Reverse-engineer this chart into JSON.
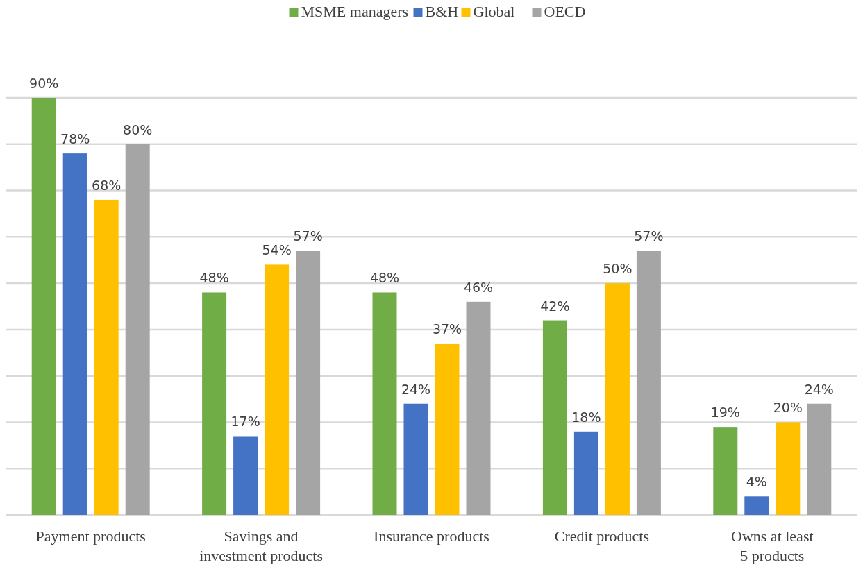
{
  "chart_data": {
    "type": "bar",
    "categories": [
      "Payment products",
      "Savings and\ninvestment products",
      "Insurance products",
      "Credit products",
      "Owns at least\n5 products"
    ],
    "series": [
      {
        "name": "MSME managers",
        "color": "#70ad47",
        "values": [
          90,
          48,
          48,
          42,
          19
        ],
        "value_labels": [
          "90%",
          "48%",
          "48%",
          "42%",
          "19%"
        ]
      },
      {
        "name": "B&H",
        "color": "#4472c4",
        "values": [
          78,
          17,
          24,
          18,
          4
        ],
        "value_labels": [
          "78%",
          "17%",
          "24%",
          "18%",
          "4%"
        ]
      },
      {
        "name": "Global",
        "color": "#ffc000",
        "values": [
          68,
          54,
          37,
          50,
          20
        ],
        "value_labels": [
          "68%",
          "54%",
          "37%",
          "50%",
          "20%"
        ]
      },
      {
        "name": "OECD",
        "color": "#a5a5a5",
        "values": [
          80,
          57,
          46,
          57,
          24
        ],
        "value_labels": [
          "80%",
          "57%",
          "46%",
          "57%",
          "24%"
        ]
      }
    ],
    "tick_labels": "x",
    "grid": "y",
    "legend": "top"
  }
}
